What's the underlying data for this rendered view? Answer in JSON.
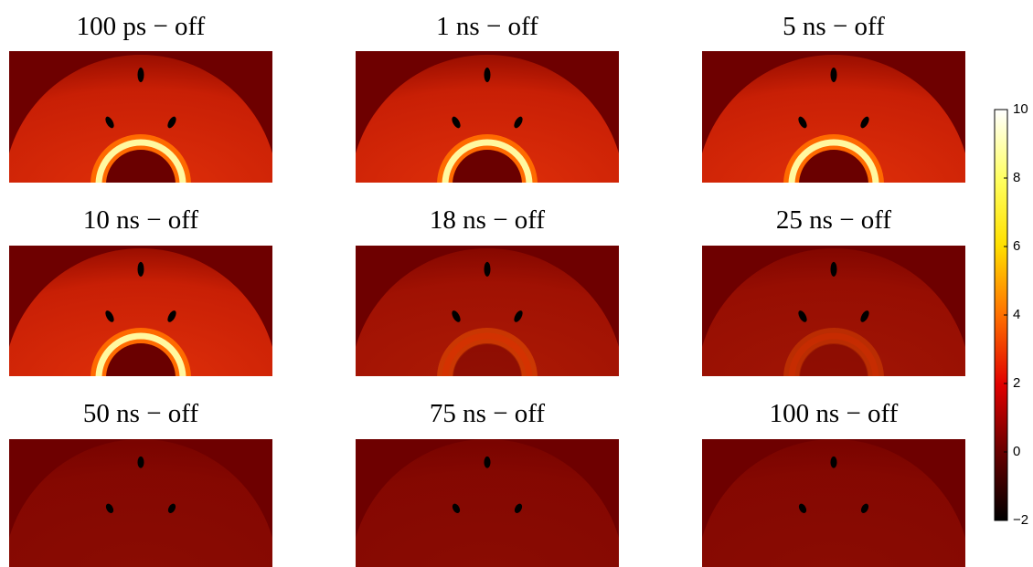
{
  "panels": [
    {
      "title": "100 ps − off"
    },
    {
      "title": "1 ns − off"
    },
    {
      "title": "5 ns − off"
    },
    {
      "title": "10 ns − off"
    },
    {
      "title": "18 ns − off"
    },
    {
      "title": "25 ns − off"
    },
    {
      "title": "50 ns − off"
    },
    {
      "title": "75 ns − off"
    },
    {
      "title": "100 ns − off"
    }
  ],
  "colorbar": {
    "lim": [
      -2,
      10
    ],
    "ticks": [
      {
        "value": -2,
        "label": "−2"
      },
      0,
      2,
      4,
      6,
      8,
      10
    ]
  }
}
